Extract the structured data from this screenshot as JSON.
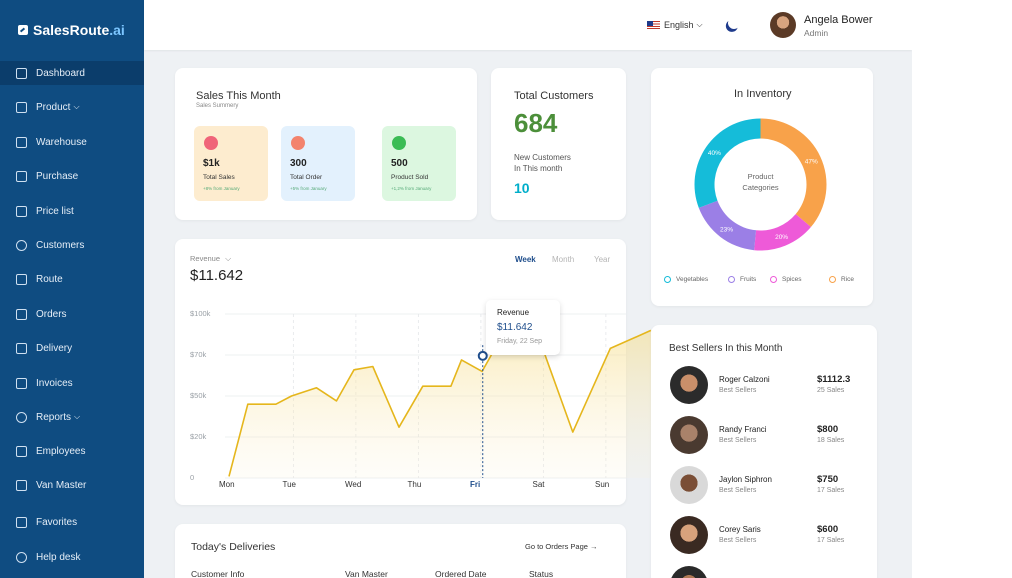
{
  "brand": {
    "name_main": "SalesRoute",
    "name_suffix": ".ai"
  },
  "sidebar": {
    "items": [
      {
        "label": "Dashboard",
        "icon": "dashboard-icon",
        "active": true
      },
      {
        "label": "Product",
        "icon": "product-icon",
        "dropdown": true
      },
      {
        "label": "Warehouse",
        "icon": "warehouse-icon"
      },
      {
        "label": "Purchase",
        "icon": "tag-icon"
      },
      {
        "label": "Price list",
        "icon": "price-tag-icon"
      },
      {
        "label": "Customers",
        "icon": "users-icon"
      },
      {
        "label": "Route",
        "icon": "route-icon"
      },
      {
        "label": "Orders",
        "icon": "basket-icon"
      },
      {
        "label": "Delivery",
        "icon": "delivery-icon"
      },
      {
        "label": "Invoices",
        "icon": "invoice-icon"
      },
      {
        "label": "Reports",
        "icon": "pie-chart-icon",
        "dropdown": true
      },
      {
        "label": "Employees",
        "icon": "employees-icon"
      },
      {
        "label": "Van Master",
        "icon": "van-icon"
      },
      {
        "label": "Favorites",
        "icon": "heart-icon"
      },
      {
        "label": "Help desk",
        "icon": "help-icon"
      }
    ]
  },
  "header": {
    "language": "English",
    "user_name": "Angela Bower",
    "user_role": "Admin"
  },
  "sales": {
    "title": "Sales This Month",
    "subtitle": "Sales Summery",
    "stats": [
      {
        "value": "$1k",
        "label": "Total Sales",
        "change": "+8% from January",
        "bg": "#fdeccf",
        "icon_color": "#f06479"
      },
      {
        "value": "300",
        "label": "Total Order",
        "change": "+5% from January",
        "bg": "#e3f1fd",
        "icon_color": "#f3836d"
      },
      {
        "value": "500",
        "label": "Product Sold",
        "change": "+1,2% from January",
        "bg": "#dcf7e0",
        "icon_color": "#3bbc55"
      }
    ]
  },
  "customers": {
    "title": "Total Customers",
    "total": "684",
    "new_label_1": "New Customers",
    "new_label_2": "In This month",
    "new_count": "10"
  },
  "inventory": {
    "title": "In Inventory",
    "center_1": "Product",
    "center_2": "Categories",
    "legend": [
      {
        "label": "Vegetables",
        "color": "#15bcd9"
      },
      {
        "label": "Fruits",
        "color": "#9b7fe6"
      },
      {
        "label": "Spices",
        "color": "#ee5ad8"
      },
      {
        "label": "Rice",
        "color": "#f8a24a"
      }
    ]
  },
  "revenue": {
    "label": "Revenue",
    "total": "$11.642",
    "tabs": [
      "Week",
      "Month",
      "Year"
    ],
    "tooltip": {
      "title": "Revenue",
      "value": "$11.642",
      "date": "Friday, 22 Sep"
    }
  },
  "chart_data": [
    {
      "type": "area",
      "title": "",
      "y_tick_labels": [
        "$100k",
        "$70k",
        "$50k",
        "$20k",
        "0"
      ],
      "ylim": [
        0,
        100
      ],
      "x": [
        "Mon",
        "Tue",
        "Wed",
        "Thu",
        "Fri",
        "Sat",
        "Sun"
      ],
      "x_highlight": "Fri",
      "series": [
        {
          "color": "#e5b61c",
          "points": [
            [
              0,
              1
            ],
            [
              0.3,
              45
            ],
            [
              0.75,
              45
            ],
            [
              1,
              50
            ],
            [
              1.4,
              55
            ],
            [
              1.72,
              47
            ],
            [
              2,
              66
            ],
            [
              2.3,
              68
            ],
            [
              2.72,
              31
            ],
            [
              3.1,
              56
            ],
            [
              3.55,
              56
            ],
            [
              3.72,
              72
            ],
            [
              4.05,
              65
            ],
            [
              4.3,
              82
            ],
            [
              4.55,
              82
            ],
            [
              5.0,
              81
            ],
            [
              5.5,
              28
            ],
            [
              6.1,
              79
            ],
            [
              6.75,
              90
            ]
          ]
        }
      ]
    },
    {
      "type": "pie",
      "title": "",
      "donut": true,
      "categories": [
        "Rice",
        "Spices",
        "Fruits",
        "Vegetables"
      ],
      "values": [
        47,
        20,
        23,
        40
      ],
      "value_labels": [
        "47%",
        "20%",
        "23%",
        "40%"
      ],
      "colors": [
        "#f8a24a",
        "#ee5ad8",
        "#9b7fe6",
        "#15bcd9"
      ]
    }
  ],
  "best_sellers": {
    "title": "Best Sellers In this Month",
    "items": [
      {
        "name": "Roger Calzoni",
        "sub": "Best Sellers",
        "amount": "$1112.3",
        "sales": "25 Sales"
      },
      {
        "name": "Randy Franci",
        "sub": "Best Sellers",
        "amount": "$800",
        "sales": "18 Sales"
      },
      {
        "name": "Jaylon Siphron",
        "sub": "Best Sellers",
        "amount": "$750",
        "sales": "17 Sales"
      },
      {
        "name": "Corey Saris",
        "sub": "Best Sellers",
        "amount": "$600",
        "sales": "17 Sales"
      }
    ]
  },
  "deliveries": {
    "title": "Today's Deliveries",
    "link": "Go to Orders Page",
    "columns": [
      "Customer Info",
      "Van Master",
      "Ordered Date",
      "Status"
    ]
  }
}
